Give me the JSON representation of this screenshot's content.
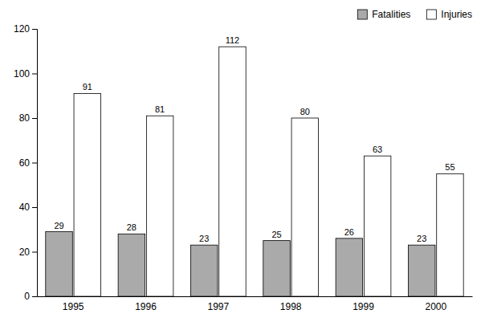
{
  "chart_data": {
    "type": "bar",
    "categories": [
      "1995",
      "1996",
      "1997",
      "1998",
      "1999",
      "2000"
    ],
    "series": [
      {
        "name": "Fatalities",
        "color": "#aaaaaa",
        "values": [
          29,
          28,
          23,
          25,
          26,
          23
        ]
      },
      {
        "name": "Injuries",
        "color": "#ffffff",
        "values": [
          91,
          81,
          112,
          80,
          63,
          55
        ]
      }
    ],
    "ylim": [
      0,
      120
    ],
    "yticks": [
      0,
      20,
      40,
      60,
      80,
      100,
      120
    ],
    "data_labels": true,
    "legend": "upper right",
    "grid": false
  }
}
